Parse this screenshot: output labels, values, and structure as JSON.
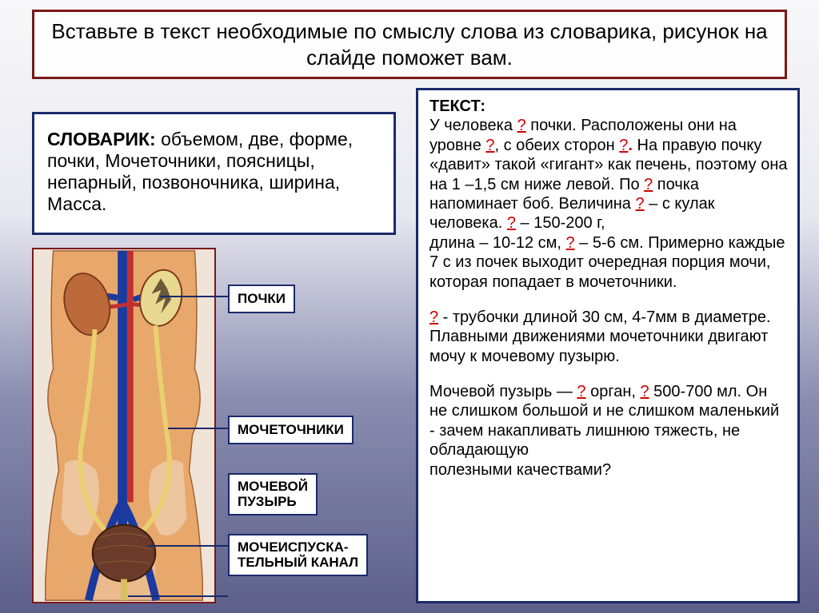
{
  "title": "Вставьте в текст необходимые по смыслу слова из словарика, рисунок на слайде поможет вам.",
  "slovarik_label": "СЛОВАРИК:",
  "slovarik_text": " объемом, две, форме, почки, Мочеточники, поясницы, непарный, позвоночника, ширина, Масса.",
  "labels": {
    "kidneys": "ПОЧКИ",
    "ureters": "МОЧЕТОЧНИКИ",
    "bladder": "МОЧЕВОЙ ПУЗЫРЬ",
    "urethra": "МОЧЕИСПУСКА-ТЕЛЬНЫЙ КАНАЛ"
  },
  "text_label": "ТЕКСТ:",
  "blank": "?",
  "para1_t1": "У человека ",
  "para1_t2": " почки. Расположены они на уровне ",
  "para1_t3": ", с обеих сторон ",
  "para1_t4_dot": ".",
  "para1_t5": " На правую почку «давит» такой «гигант» как печень, поэтому она на 1 –1,5 см ниже левой. По ",
  "para1_t6": "   почка напоминает боб. Величина ",
  "para1_t7": " – с кулак человека. ",
  "para1_t8": " – 150-200 г,",
  "para1_t9": "длина – 10-12 см, ",
  "para1_t10": " – 5-6 см. Примерно каждые 7 с из почек выходит очередная порция мочи, которая попадает в мочеточники.",
  "para2_t1": "   ",
  "para2_t2": "   - трубочки длиной 30 см, 4-7мм в диаметре. Плавными движениями мочеточники двигают мочу к мочевому пузырю.",
  "para3_t1": "Мочевой пузырь — ",
  "para3_t2": " орган, ",
  "para3_t3": " 500-700 мл. Он не слишком большой и не слишком маленький - зачем накапливать лишнюю тяжесть, не обладающую",
  "para3_t4": "полезными качествами?",
  "colors": {
    "border_red": "#7a1818",
    "border_blue": "#1a2a6a",
    "blank_red": "#d00000",
    "torso_bg": "#f0e4d8",
    "body_fill": "#e8a86c",
    "kidney_fill": "#bc6a3a",
    "vein_blue": "#1a3aa0",
    "artery_red": "#c03030",
    "ureter_yellow": "#e8d070",
    "bladder_fill": "#6a3a2a"
  }
}
